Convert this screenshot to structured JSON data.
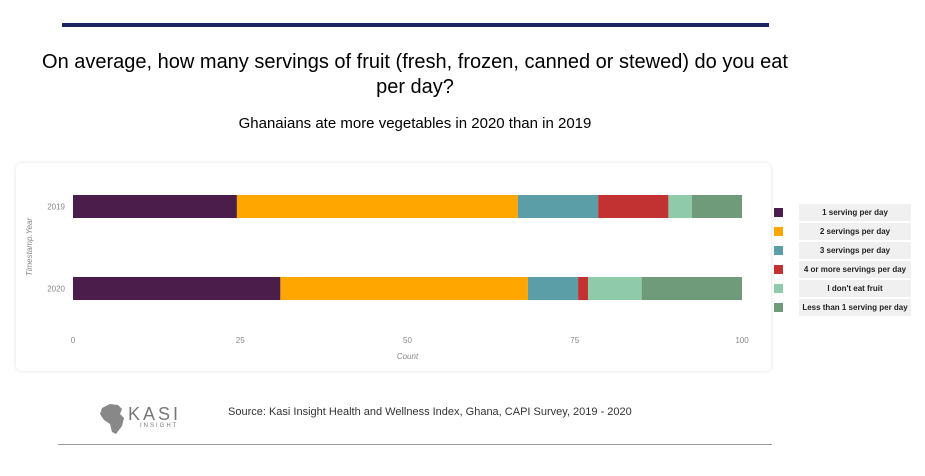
{
  "title": "On average, how many servings of fruit (fresh, frozen, canned or stewed) do you eat per day?",
  "subtitle": "Ghanaians ate more vegetables in 2020 than in 2019",
  "source": "Source: Kasi Insight Health and Wellness Index, Ghana, CAPI Survey, 2019 - 2020",
  "logo": {
    "name": "KASI",
    "tagline": "INSIGHT"
  },
  "chart_data": {
    "type": "bar",
    "orientation": "horizontal",
    "stacked": true,
    "xlabel": "Count",
    "ylabel": "Timestamp.Year",
    "xlim": [
      0,
      100
    ],
    "xticks": [
      0,
      25,
      50,
      75,
      100
    ],
    "categories": [
      "2019",
      "2020"
    ],
    "series": [
      {
        "name": "1 serving per day",
        "color": "#4b1d4a",
        "values": [
          24.5,
          31
        ]
      },
      {
        "name": "2 servings per day",
        "color": "#ffa600",
        "values": [
          42,
          37
        ]
      },
      {
        "name": "3 servings per day",
        "color": "#5c9ea8",
        "values": [
          12,
          7.5
        ]
      },
      {
        "name": "4 or more servings per day",
        "color": "#c23232",
        "values": [
          10.5,
          1.5
        ]
      },
      {
        "name": "I don't eat fruit",
        "color": "#8fcbab",
        "values": [
          3.5,
          8
        ]
      },
      {
        "name": "Less than 1 serving per day",
        "color": "#6f9b7b",
        "values": [
          7.5,
          15
        ]
      }
    ]
  }
}
